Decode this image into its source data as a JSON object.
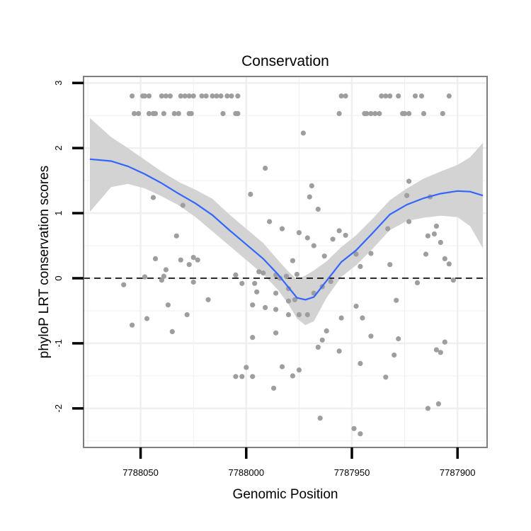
{
  "chart_data": {
    "type": "scatter",
    "title": "Conservation",
    "xlabel": "Genomic Position",
    "ylabel": "phyloP LRT conservation scores",
    "x_reversed": true,
    "xlim": [
      7788077,
      7787886
    ],
    "ylim": [
      -2.6,
      3.1
    ],
    "x_ticks": [
      7788050,
      7788000,
      7787950,
      7787900
    ],
    "x_tick_labels": [
      "7788050",
      "7788000",
      "7787950",
      "7787900"
    ],
    "y_ticks": [
      -2,
      -1,
      0,
      1,
      2,
      3
    ],
    "y_tick_labels": [
      "-2",
      "-1",
      "0",
      "1",
      "2",
      "3"
    ],
    "grid": true,
    "reference_line": {
      "y": 0,
      "style": "dashed"
    },
    "colors": {
      "points": "#9e9e9e",
      "smooth": "#3366ff",
      "ribbon": "#d3d3d3",
      "panel_border": "#7f7f7f",
      "grid": "#efefef",
      "axis_ticks": "#000000"
    },
    "points": [
      [
        7788054,
        2.8
      ],
      [
        7788049,
        2.8
      ],
      [
        7788048,
        2.8
      ],
      [
        7788046,
        2.8
      ],
      [
        7788040,
        2.8
      ],
      [
        7788038,
        2.8
      ],
      [
        7788036,
        2.8
      ],
      [
        7788031,
        2.8
      ],
      [
        7788029,
        2.8
      ],
      [
        7788027,
        2.8
      ],
      [
        7788025,
        2.8
      ],
      [
        7788021,
        2.8
      ],
      [
        7788019,
        2.8
      ],
      [
        7788016,
        2.8
      ],
      [
        7788014,
        2.8
      ],
      [
        7788012,
        2.8
      ],
      [
        7788009,
        2.8
      ],
      [
        7788007,
        2.8
      ],
      [
        7788004,
        2.8
      ],
      [
        7787955,
        2.8
      ],
      [
        7787953,
        2.8
      ],
      [
        7787936,
        2.8
      ],
      [
        7787934,
        2.8
      ],
      [
        7787932,
        2.8
      ],
      [
        7787928,
        2.8
      ],
      [
        7787920,
        2.8
      ],
      [
        7787917,
        2.8
      ],
      [
        7787904,
        2.8
      ],
      [
        7788053,
        2.53
      ],
      [
        7788051,
        2.53
      ],
      [
        7788046,
        2.53
      ],
      [
        7788044,
        2.53
      ],
      [
        7788043,
        2.53
      ],
      [
        7788039,
        2.53
      ],
      [
        7788034,
        2.53
      ],
      [
        7788032,
        2.53
      ],
      [
        7788027,
        2.53
      ],
      [
        7788026,
        2.53
      ],
      [
        7788011,
        2.53
      ],
      [
        7788005,
        2.53
      ],
      [
        7788004,
        2.53
      ],
      [
        7787956,
        2.53
      ],
      [
        7787944,
        2.53
      ],
      [
        7787943,
        2.53
      ],
      [
        7787941,
        2.53
      ],
      [
        7787939,
        2.53
      ],
      [
        7787937,
        2.53
      ],
      [
        7787926,
        2.53
      ],
      [
        7787925,
        2.53
      ],
      [
        7787923,
        2.53
      ],
      [
        7787916,
        2.53
      ],
      [
        7787907,
        2.53
      ],
      [
        7787973,
        2.23
      ],
      [
        7787991,
        1.69
      ],
      [
        7787969,
        1.42
      ],
      [
        7787923,
        1.49
      ],
      [
        7787970,
        1.25
      ],
      [
        7787924,
        1.27
      ],
      [
        7787913,
        1.25
      ],
      [
        7788044,
        1.24
      ],
      [
        7788030,
        1.12
      ],
      [
        7787998,
        1.29
      ],
      [
        7787966,
        1.06
      ],
      [
        7787989,
        0.87
      ],
      [
        7787983,
        0.76
      ],
      [
        7787975,
        0.7
      ],
      [
        7787959,
        0.6
      ],
      [
        7787923,
        0.87
      ],
      [
        7787910,
        0.8
      ],
      [
        7787968,
        0.5
      ],
      [
        7787933,
        0.76
      ],
      [
        7787953,
        0.66
      ],
      [
        7787941,
        0.38
      ],
      [
        7787971,
        0.62
      ],
      [
        7787956,
        0.73
      ],
      [
        7788033,
        0.65
      ],
      [
        7787914,
        0.65
      ],
      [
        7787908,
        0.55
      ],
      [
        7787963,
        0.34
      ],
      [
        7788038,
        0.13
      ],
      [
        7788043,
        0.3
      ],
      [
        7787948,
        0.37
      ],
      [
        7787978,
        0.27
      ],
      [
        7787981,
        0.03
      ],
      [
        7787986,
        0.05
      ],
      [
        7787984,
        0.0
      ],
      [
        7787976,
        0.06
      ],
      [
        7787992,
        0.08
      ],
      [
        7787994,
        0.1
      ],
      [
        7787980,
        -0.16
      ],
      [
        7787986,
        -0.23
      ],
      [
        7787960,
        -0.05
      ],
      [
        7788005,
        0.05
      ],
      [
        7788025,
        0.32
      ],
      [
        7788031,
        0.28
      ],
      [
        7788023,
        0.28
      ],
      [
        7788027,
        0.21
      ],
      [
        7788048,
        0.02
      ],
      [
        7788002,
        -0.08
      ],
      [
        7787919,
        -0.07
      ],
      [
        7787932,
        0.21
      ],
      [
        7788058,
        -0.1
      ],
      [
        7787964,
        -0.13
      ],
      [
        7787946,
        0.18
      ],
      [
        7787911,
        0.68
      ],
      [
        7787915,
        0.37
      ],
      [
        7787906,
        0.3
      ],
      [
        7787904,
        0.22
      ],
      [
        7787997,
        -0.41
      ],
      [
        7787991,
        -0.45
      ],
      [
        7787980,
        -0.35
      ],
      [
        7787986,
        -0.48
      ],
      [
        7787977,
        -0.33
      ],
      [
        7787968,
        -0.23
      ],
      [
        7787948,
        -0.43
      ],
      [
        7788037,
        -0.41
      ],
      [
        7787929,
        -0.34
      ],
      [
        7788028,
        -0.56
      ],
      [
        7788025,
        -0.06
      ],
      [
        7788040,
        -0.03
      ],
      [
        7788039,
        0.03
      ],
      [
        7787995,
        -0.21
      ],
      [
        7787996,
        -0.08
      ],
      [
        7787902,
        -0.03
      ],
      [
        7787945,
        -0.61
      ],
      [
        7787955,
        -0.61
      ],
      [
        7787971,
        -0.56
      ],
      [
        7787975,
        -0.56
      ],
      [
        7787980,
        -0.56
      ],
      [
        7787962,
        -0.81
      ],
      [
        7787986,
        -0.84
      ],
      [
        7787997,
        -0.91
      ],
      [
        7788054,
        -0.72
      ],
      [
        7788035,
        -0.82
      ],
      [
        7788047,
        -0.62
      ],
      [
        7787964,
        -0.95
      ],
      [
        7787941,
        -0.89
      ],
      [
        7787956,
        -1.12
      ],
      [
        7787930,
        -1.18
      ],
      [
        7787966,
        -1.06
      ],
      [
        7788018,
        -0.33
      ],
      [
        7787906,
        -0.98
      ],
      [
        7787910,
        -1.1
      ],
      [
        7787908,
        -1.14
      ],
      [
        7787928,
        -0.93
      ],
      [
        7787946,
        -1.31
      ],
      [
        7788000,
        -1.37
      ],
      [
        7788002,
        -1.51
      ],
      [
        7787975,
        -1.41
      ],
      [
        7787983,
        -1.36
      ],
      [
        7787978,
        -1.5
      ],
      [
        7787997,
        -1.51
      ],
      [
        7788005,
        -1.51
      ],
      [
        7787987,
        -1.69
      ],
      [
        7787965,
        -2.15
      ],
      [
        7787934,
        -1.52
      ],
      [
        7787914,
        -2.0
      ],
      [
        7787909,
        -1.93
      ],
      [
        7787946,
        -2.39
      ],
      [
        7787949,
        -2.31
      ]
    ],
    "smooth_line": [
      [
        7788074,
        1.83
      ],
      [
        7788064,
        1.8
      ],
      [
        7788056,
        1.72
      ],
      [
        7788048,
        1.6
      ],
      [
        7788040,
        1.46
      ],
      [
        7788032,
        1.3
      ],
      [
        7788024,
        1.15
      ],
      [
        7788016,
        0.97
      ],
      [
        7788008,
        0.74
      ],
      [
        7788000,
        0.52
      ],
      [
        7787992,
        0.3
      ],
      [
        7787985,
        0.06
      ],
      [
        7787980,
        -0.14
      ],
      [
        7787976,
        -0.3
      ],
      [
        7787972,
        -0.33
      ],
      [
        7787968,
        -0.29
      ],
      [
        7787962,
        -0.04
      ],
      [
        7787955,
        0.25
      ],
      [
        7787948,
        0.43
      ],
      [
        7787940,
        0.7
      ],
      [
        7787932,
        0.98
      ],
      [
        7787924,
        1.13
      ],
      [
        7787916,
        1.23
      ],
      [
        7787908,
        1.3
      ],
      [
        7787900,
        1.34
      ],
      [
        7787894,
        1.33
      ],
      [
        7787888,
        1.27
      ]
    ],
    "ribbon_upper": [
      [
        7788074,
        2.46
      ],
      [
        7788064,
        2.17
      ],
      [
        7788056,
        2.0
      ],
      [
        7788048,
        1.82
      ],
      [
        7788040,
        1.64
      ],
      [
        7788032,
        1.48
      ],
      [
        7788024,
        1.36
      ],
      [
        7788016,
        1.22
      ],
      [
        7788008,
        0.98
      ],
      [
        7788000,
        0.76
      ],
      [
        7787992,
        0.54
      ],
      [
        7787985,
        0.28
      ],
      [
        7787980,
        0.1
      ],
      [
        7787976,
        -0.02
      ],
      [
        7787972,
        0.04
      ],
      [
        7787968,
        0.12
      ],
      [
        7787962,
        0.26
      ],
      [
        7787955,
        0.48
      ],
      [
        7787948,
        0.66
      ],
      [
        7787940,
        0.92
      ],
      [
        7787932,
        1.2
      ],
      [
        7787924,
        1.38
      ],
      [
        7787916,
        1.53
      ],
      [
        7787908,
        1.64
      ],
      [
        7787900,
        1.74
      ],
      [
        7787894,
        1.86
      ],
      [
        7787888,
        2.08
      ]
    ],
    "ribbon_lower": [
      [
        7788074,
        1.02
      ],
      [
        7788064,
        1.4
      ],
      [
        7788056,
        1.45
      ],
      [
        7788048,
        1.38
      ],
      [
        7788040,
        1.26
      ],
      [
        7788032,
        1.12
      ],
      [
        7788024,
        0.94
      ],
      [
        7788016,
        0.72
      ],
      [
        7788008,
        0.5
      ],
      [
        7788000,
        0.28
      ],
      [
        7787992,
        0.06
      ],
      [
        7787985,
        -0.18
      ],
      [
        7787980,
        -0.4
      ],
      [
        7787976,
        -0.62
      ],
      [
        7787972,
        -0.72
      ],
      [
        7787968,
        -0.66
      ],
      [
        7787962,
        -0.3
      ],
      [
        7787955,
        0.02
      ],
      [
        7787948,
        0.2
      ],
      [
        7787940,
        0.46
      ],
      [
        7787932,
        0.74
      ],
      [
        7787924,
        0.88
      ],
      [
        7787916,
        0.93
      ],
      [
        7787908,
        0.96
      ],
      [
        7787900,
        0.94
      ],
      [
        7787894,
        0.8
      ],
      [
        7787888,
        0.46
      ]
    ]
  }
}
